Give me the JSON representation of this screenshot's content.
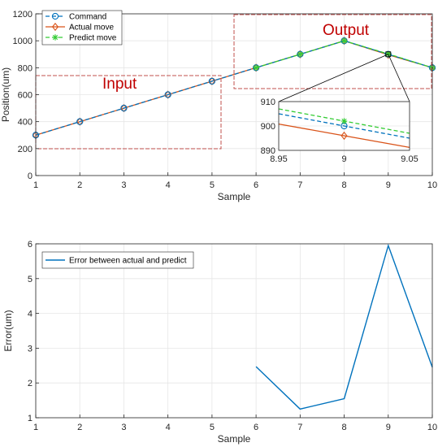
{
  "chart_data": [
    {
      "type": "line",
      "x": [
        1,
        2,
        3,
        4,
        5,
        6,
        7,
        8,
        9,
        10
      ],
      "xlabel": "Sample",
      "ylabel": "Position(um)",
      "xlim": [
        1,
        10
      ],
      "ylim": [
        0,
        1200
      ],
      "xticks": [
        "1",
        "2",
        "3",
        "4",
        "5",
        "6",
        "7",
        "8",
        "9",
        "10"
      ],
      "yticks": [
        "0",
        "200",
        "400",
        "600",
        "800",
        "1000",
        "1200"
      ],
      "grid": true,
      "legend_position": "top-left",
      "series": [
        {
          "name": "Command",
          "color": "#0072bd",
          "style": "dashed",
          "marker": "circle",
          "x": [
            1,
            2,
            3,
            4,
            5,
            6,
            7,
            8,
            9,
            10
          ],
          "values": [
            300,
            400,
            500,
            600,
            700,
            800,
            900,
            1000,
            900,
            800
          ]
        },
        {
          "name": "Actual move",
          "color": "#d95319",
          "style": "solid",
          "marker": "diamond",
          "x": [
            1,
            2,
            3,
            4,
            5,
            6,
            7,
            8,
            9,
            10
          ],
          "values": [
            300,
            400,
            500,
            600,
            700,
            800,
            900,
            1000,
            896,
            800
          ]
        },
        {
          "name": "Predict move",
          "color": "#33cc33",
          "style": "dashed",
          "marker": "star",
          "x": [
            6,
            7,
            8,
            9,
            10
          ],
          "values": [
            800,
            900,
            1000,
            902,
            800
          ]
        }
      ],
      "annotations": [
        {
          "text": "Input",
          "color": "#c00000"
        },
        {
          "text": "Output",
          "color": "#c00000"
        }
      ],
      "inset": {
        "xlim": [
          8.95,
          9.05
        ],
        "ylim": [
          890,
          910
        ],
        "xticks": [
          "8.95",
          "9",
          "9.05"
        ],
        "yticks": [
          "890",
          "900",
          "910"
        ],
        "lines": [
          {
            "series": "Command",
            "x": [
              8.95,
              9.0,
              9.05
            ],
            "values": [
              905,
              900,
              895
            ]
          },
          {
            "series": "Actual move",
            "x": [
              8.95,
              9.0,
              9.05
            ],
            "values": [
              900.8,
              896,
              891.2
            ]
          },
          {
            "series": "Predict move",
            "x": [
              8.95,
              9.0,
              9.05
            ],
            "values": [
              907,
              902,
              897
            ]
          }
        ]
      }
    },
    {
      "type": "line",
      "xlabel": "Sample",
      "ylabel": "Error(um)",
      "xlim": [
        1,
        10
      ],
      "ylim": [
        1,
        6
      ],
      "xticks": [
        "1",
        "2",
        "3",
        "4",
        "5",
        "6",
        "7",
        "8",
        "9",
        "10"
      ],
      "yticks": [
        "1",
        "2",
        "3",
        "4",
        "5",
        "6"
      ],
      "grid": true,
      "legend_position": "top-left",
      "series": [
        {
          "name": "Error between actual and predict",
          "color": "#0072bd",
          "x": [
            6,
            7,
            8,
            9,
            10
          ],
          "values": [
            2.47,
            1.25,
            1.55,
            5.95,
            2.45
          ]
        }
      ]
    }
  ]
}
